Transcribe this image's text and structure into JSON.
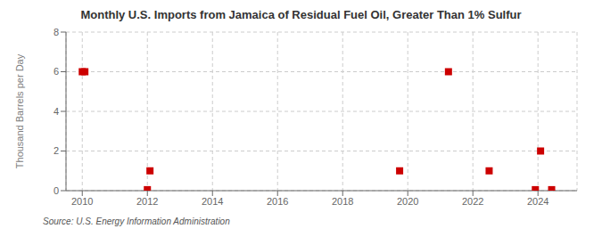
{
  "chart_data": {
    "type": "scatter",
    "title": "Monthly U.S. Imports from Jamaica of Residual Fuel Oil, Greater Than 1% Sulfur",
    "ylabel": "Thousand Barrels per Day",
    "annotations": [
      "Source: U.S. Energy Information Administration"
    ],
    "x": [
      2010.0,
      2010.08,
      2012.0,
      2012.08,
      2019.75,
      2021.25,
      2022.5,
      2023.92,
      2024.08,
      2024.42
    ],
    "values": [
      6.0,
      6.0,
      0.05,
      1.0,
      1.0,
      6.0,
      1.0,
      0.05,
      2.0,
      0.05
    ],
    "color": "#cc0000",
    "marker": "square",
    "xlim": [
      2009.5,
      2025.2
    ],
    "ylim": [
      0,
      8
    ],
    "xticks": [
      2010,
      2012,
      2014,
      2016,
      2018,
      2020,
      2022,
      2024
    ],
    "yticks": [
      0,
      2,
      4,
      6,
      8
    ],
    "grid": true
  }
}
